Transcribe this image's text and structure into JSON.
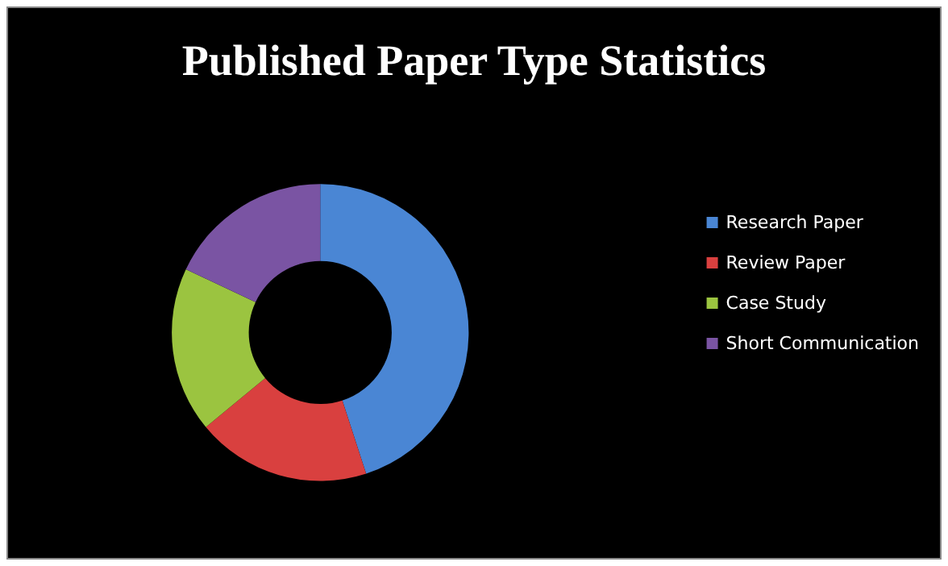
{
  "chart_data": {
    "type": "donut",
    "title": "Published Paper Type Statistics",
    "categories": [
      "Research Paper",
      "Review Paper",
      "Case Study",
      "Short Communication"
    ],
    "values": [
      45,
      19,
      18,
      18
    ],
    "colors": [
      "#4a86d4",
      "#d9403f",
      "#9bc440",
      "#7a54a3"
    ],
    "legend": "right"
  }
}
